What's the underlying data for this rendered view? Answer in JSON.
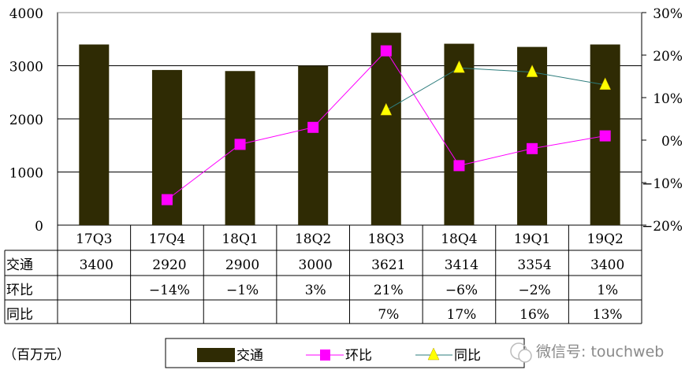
{
  "chart_data": {
    "type": "bar",
    "categories": [
      "17Q3",
      "17Q4",
      "18Q1",
      "18Q2",
      "18Q3",
      "18Q4",
      "19Q1",
      "19Q2"
    ],
    "left_axis": {
      "ylim": [
        0,
        4000
      ],
      "ticks": [
        "0",
        "1000",
        "2000",
        "3000",
        "4000"
      ]
    },
    "right_axis": {
      "ylim": [
        -20,
        30
      ],
      "ticks": [
        "-20%",
        "-10%",
        "0%",
        "10%",
        "20%",
        "30%"
      ]
    },
    "grid": true,
    "unit_label": "（百万元）",
    "series": [
      {
        "name": "交通",
        "type": "bar",
        "axis": "left",
        "color": "#2f2b04",
        "values": [
          3400,
          2920,
          2900,
          3000,
          3621,
          3414,
          3354,
          3400
        ]
      },
      {
        "name": "环比",
        "type": "line",
        "axis": "right",
        "color": "#ff00ff",
        "marker": "square",
        "values": [
          null,
          -14,
          -1,
          3,
          21,
          -6,
          -2,
          1
        ]
      },
      {
        "name": "同比",
        "type": "line",
        "axis": "right",
        "color": "#2e7d7d",
        "marker": "triangle",
        "marker_color": "#ffff00",
        "values": [
          null,
          null,
          null,
          null,
          7,
          17,
          16,
          13
        ]
      }
    ],
    "table": {
      "rows": [
        {
          "label": "交通",
          "cells": [
            "3400",
            "2920",
            "2900",
            "3000",
            "3621",
            "3414",
            "3354",
            "3400"
          ]
        },
        {
          "label": "环比",
          "cells": [
            "",
            "−14%",
            "−1%",
            "3%",
            "21%",
            "−6%",
            "−2%",
            "1%"
          ]
        },
        {
          "label": "同比",
          "cells": [
            "",
            "",
            "",
            "",
            "7%",
            "17%",
            "16%",
            "13%"
          ]
        }
      ]
    },
    "legend": {
      "placement": "bottom",
      "items": [
        "交通",
        "环比",
        "同比"
      ]
    }
  },
  "watermark": "微信号: touchweb"
}
